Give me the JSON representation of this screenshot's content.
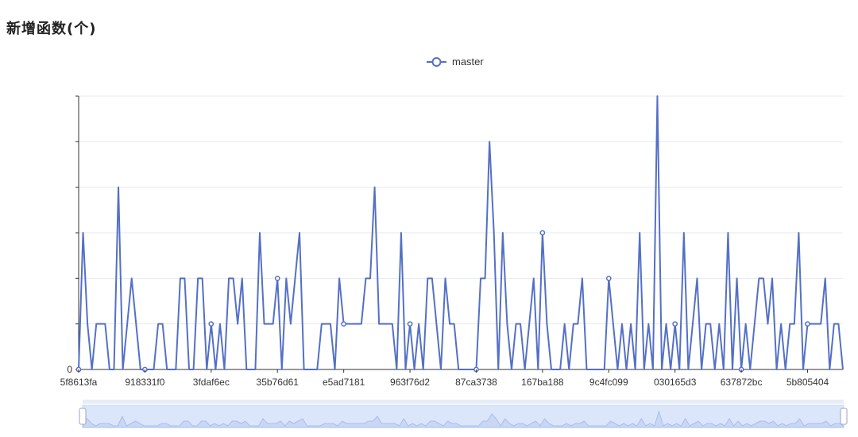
{
  "page": {
    "title": "新增函数(个)"
  },
  "colors": {
    "series": "#5470c6",
    "grid": "#e6e9f0",
    "axis": "#333333",
    "zoom_fill": "#dce6fb",
    "zoom_line": "#a9bdf0"
  },
  "chart_data": {
    "type": "line",
    "title": "新增函数(个)",
    "legend": [
      "master"
    ],
    "legend_position": "top-center",
    "grid": true,
    "ylim": [
      0,
      6
    ],
    "y_tick_labels": [
      "0"
    ],
    "x_tick_labels": [
      "5f8613fa",
      "918331f0",
      "3fdaf6ec",
      "35b76d61",
      "e5ad7181",
      "963f76d2",
      "87ca3738",
      "167ba188",
      "9c4fc099",
      "030165d3",
      "637872bc",
      "5b805404"
    ],
    "data_zoom": true,
    "series": [
      {
        "name": "master",
        "values": [
          0,
          3,
          1,
          0,
          1,
          1,
          1,
          0,
          0,
          4,
          0,
          1,
          2,
          1,
          0,
          0,
          0,
          0,
          1,
          1,
          0,
          0,
          0,
          2,
          2,
          0,
          0,
          2,
          2,
          0,
          1,
          0,
          1,
          0,
          2,
          2,
          1,
          2,
          0,
          0,
          0,
          3,
          1,
          1,
          1,
          2,
          0,
          2,
          1,
          2,
          3,
          0,
          0,
          0,
          0,
          1,
          1,
          1,
          0,
          2,
          1,
          1,
          1,
          1,
          1,
          2,
          2,
          4,
          1,
          1,
          1,
          1,
          0,
          3,
          0,
          1,
          0,
          1,
          0,
          2,
          2,
          1,
          0,
          2,
          1,
          1,
          0,
          0,
          0,
          0,
          0,
          2,
          2,
          5,
          3,
          0,
          3,
          1,
          0,
          1,
          1,
          0,
          1,
          2,
          0,
          3,
          1,
          0,
          0,
          0,
          1,
          0,
          1,
          1,
          2,
          0,
          0,
          0,
          0,
          0,
          2,
          1,
          0,
          1,
          0,
          1,
          0,
          3,
          0,
          1,
          0,
          6,
          0,
          1,
          0,
          1,
          0,
          3,
          0,
          1,
          2,
          0,
          1,
          1,
          0,
          1,
          0,
          3,
          0,
          2,
          0,
          1,
          0,
          1,
          2,
          2,
          1,
          2,
          0,
          1,
          0,
          1,
          1,
          3,
          0,
          1,
          1,
          1,
          1,
          2,
          0,
          1,
          1,
          0
        ]
      }
    ]
  }
}
